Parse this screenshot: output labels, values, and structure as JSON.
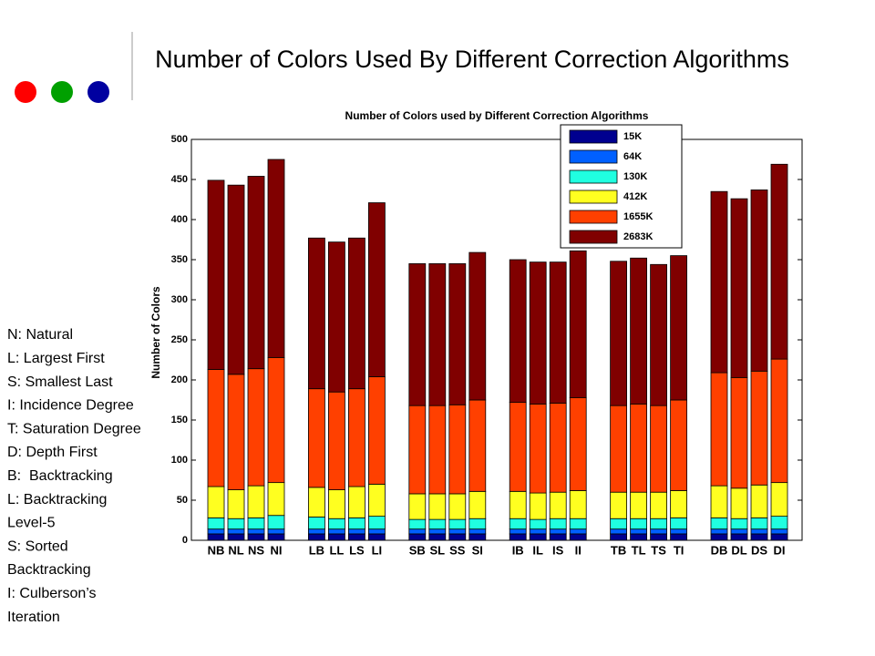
{
  "slide_title": "Number of Colors Used By Different Correction Algorithms",
  "notes": [
    "N: Natural",
    "L: Largest First",
    "S: Smallest Last",
    "I: Incidence Degree",
    "T: Saturation Degree",
    "D: Depth First",
    "B:  Backtracking",
    "L: Backtracking",
    "Level-5",
    "S: Sorted",
    "Backtracking",
    "I: Culberson’s",
    "Iteration"
  ],
  "chart_data": {
    "type": "stacked_bar",
    "title": "Number of Colors used by Different Correction Algorithms",
    "ylabel": "Number of Colors",
    "categories": [
      "NB",
      "NL",
      "NS",
      "NI",
      "LB",
      "LL",
      "LS",
      "LI",
      "SB",
      "SL",
      "SS",
      "SI",
      "IB",
      "IL",
      "IS",
      "II",
      "TB",
      "TL",
      "TS",
      "TI",
      "DB",
      "DL",
      "DS",
      "DI"
    ],
    "ylim": [
      0,
      500
    ],
    "yticks": [
      0,
      50,
      100,
      150,
      200,
      250,
      300,
      350,
      400,
      450,
      500
    ],
    "legend": "upper right",
    "series": [
      {
        "name": "15K",
        "color": "#00008f",
        "values": [
          8,
          8,
          8,
          8,
          8,
          8,
          8,
          8,
          8,
          8,
          8,
          8,
          8,
          8,
          8,
          8,
          8,
          8,
          8,
          8,
          8,
          8,
          8,
          8
        ]
      },
      {
        "name": "64K",
        "color": "#0060ff",
        "values": [
          6,
          6,
          6,
          6,
          6,
          6,
          6,
          6,
          6,
          6,
          6,
          6,
          6,
          6,
          6,
          6,
          6,
          6,
          6,
          6,
          6,
          6,
          6,
          6
        ]
      },
      {
        "name": "130K",
        "color": "#20ffe0",
        "values": [
          14,
          13,
          14,
          17,
          15,
          13,
          14,
          16,
          12,
          12,
          12,
          13,
          13,
          12,
          13,
          13,
          13,
          13,
          13,
          14,
          14,
          13,
          14,
          16
        ]
      },
      {
        "name": "412K",
        "color": "#ffff20",
        "values": [
          39,
          36,
          40,
          41,
          37,
          36,
          39,
          40,
          32,
          32,
          32,
          34,
          34,
          33,
          33,
          35,
          33,
          33,
          33,
          34,
          40,
          38,
          41,
          42
        ]
      },
      {
        "name": "1655K",
        "color": "#ff4000",
        "values": [
          146,
          144,
          146,
          156,
          123,
          122,
          122,
          134,
          110,
          110,
          111,
          114,
          111,
          111,
          111,
          116,
          108,
          110,
          108,
          113,
          141,
          138,
          142,
          154
        ]
      },
      {
        "name": "2683K",
        "color": "#800000",
        "values": [
          236,
          236,
          240,
          247,
          188,
          187,
          188,
          217,
          177,
          177,
          176,
          184,
          178,
          177,
          176,
          183,
          180,
          182,
          176,
          180,
          226,
          223,
          226,
          243
        ]
      }
    ]
  }
}
